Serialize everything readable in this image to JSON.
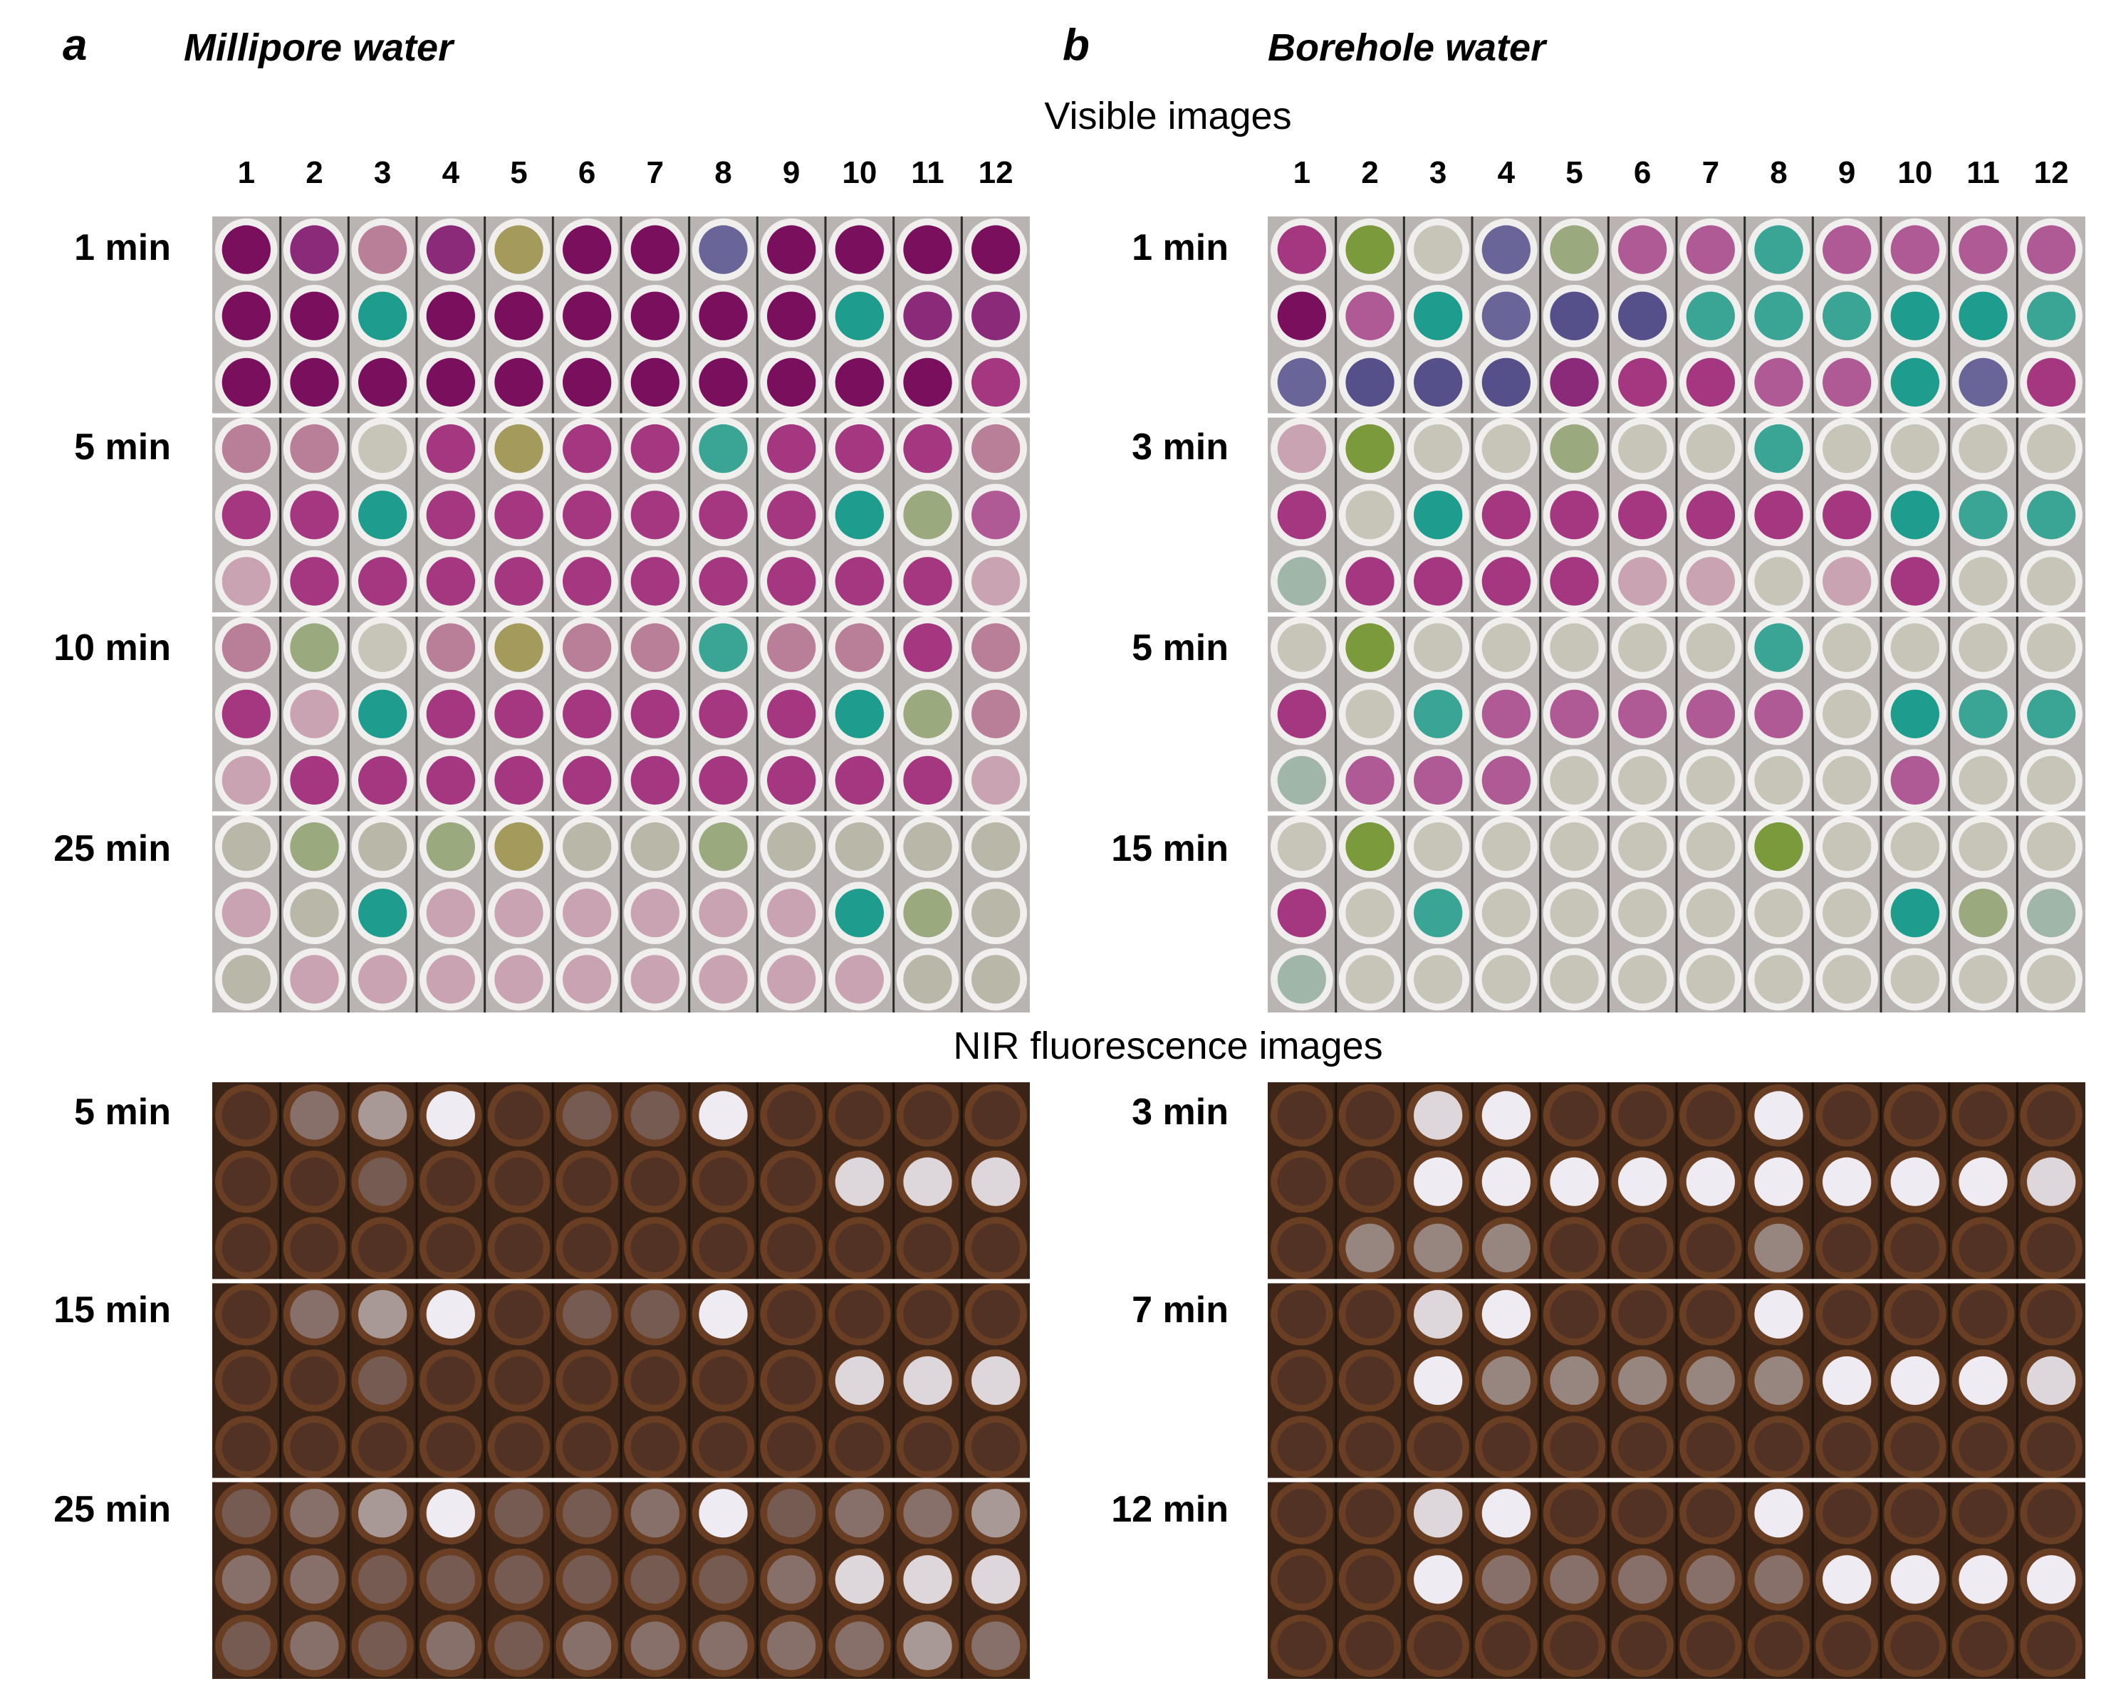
{
  "panels": [
    {
      "id": "a",
      "letter": "a",
      "title": "Millipore water",
      "visible_times": [
        "1 min",
        "5 min",
        "10 min",
        "25 min"
      ],
      "nir_times": [
        "5 min",
        "15 min",
        "25 min"
      ]
    },
    {
      "id": "b",
      "letter": "b",
      "title": "Borehole water",
      "visible_times": [
        "1 min",
        "3 min",
        "5 min",
        "15 min"
      ],
      "nir_times": [
        "3 min",
        "7 min",
        "12 min"
      ]
    }
  ],
  "section_titles": {
    "visible": "Visible images",
    "nir": "NIR fluorescence images"
  },
  "columns": [
    "1",
    "2",
    "3",
    "4",
    "5",
    "6",
    "7",
    "8",
    "9",
    "10",
    "11",
    "12"
  ],
  "colors": {
    "visible_plate_bg": "#b9b4b2",
    "nir_plate_bg": "#3a2418",
    "well_rim_visible": "#f1efee",
    "well_rim_nir": "#6a3e22",
    "separator": "#ffffff"
  }
}
